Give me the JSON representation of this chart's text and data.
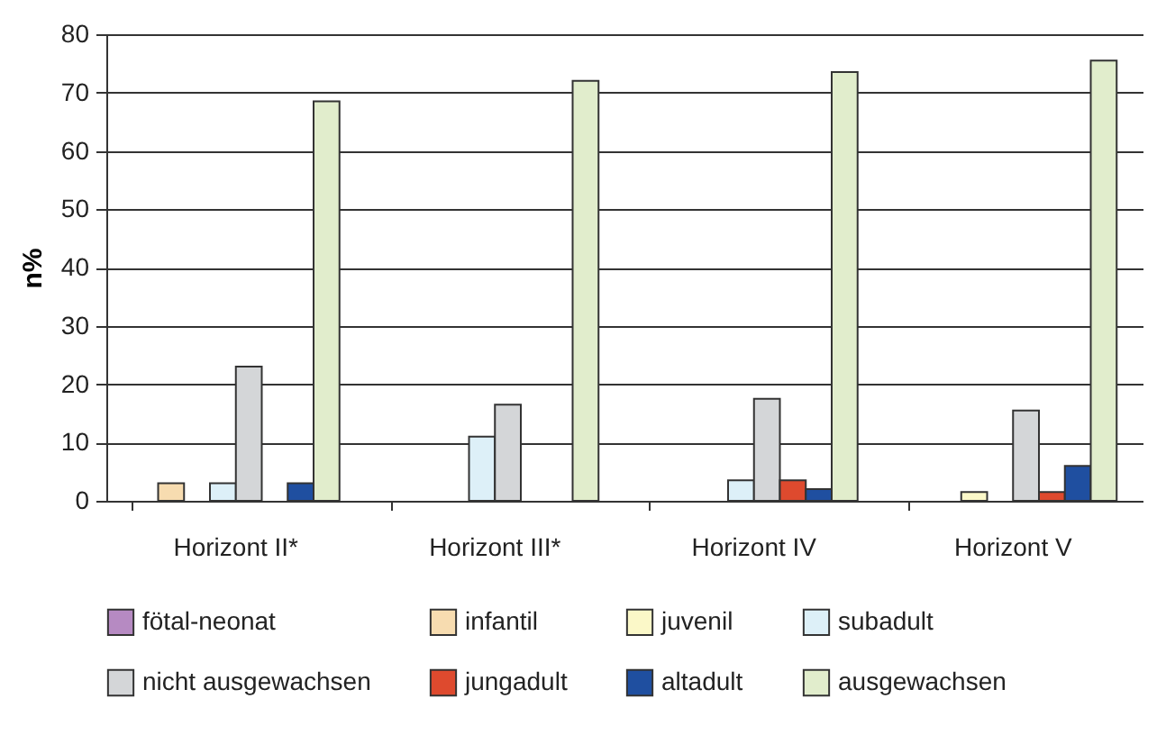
{
  "chart_data": {
    "type": "bar",
    "ylabel": "n%",
    "categories": [
      "Horizont II*",
      "Horizont III*",
      "Horizont IV",
      "Horizont V"
    ],
    "series": [
      {
        "name": "fötal-neonat",
        "color": "#b68ac2",
        "values": [
          0,
          0,
          0,
          0
        ]
      },
      {
        "name": "infantil",
        "color": "#f7dcb0",
        "values": [
          3,
          0,
          0,
          0
        ]
      },
      {
        "name": "juvenil",
        "color": "#fbf8c8",
        "values": [
          0,
          0,
          0,
          1.5
        ]
      },
      {
        "name": "subadult",
        "color": "#ddf0f8",
        "values": [
          3,
          11,
          3.5,
          0
        ]
      },
      {
        "name": "nicht ausgewachsen",
        "color": "#d4d6d8",
        "values": [
          23,
          16.5,
          17.5,
          15.5
        ]
      },
      {
        "name": "jungadult",
        "color": "#de4a2e",
        "values": [
          0,
          0,
          3.5,
          1.5
        ]
      },
      {
        "name": "altadult",
        "color": "#1f4fa0",
        "values": [
          3,
          0,
          2,
          6
        ]
      },
      {
        "name": "ausgewachsen",
        "color": "#e1edcc",
        "values": [
          68.5,
          72,
          73.5,
          75.5
        ]
      }
    ],
    "ylim": [
      0,
      80
    ],
    "yticks": [
      0,
      10,
      20,
      30,
      40,
      50,
      60,
      70,
      80
    ],
    "grid": "y",
    "legend": "bottom"
  }
}
